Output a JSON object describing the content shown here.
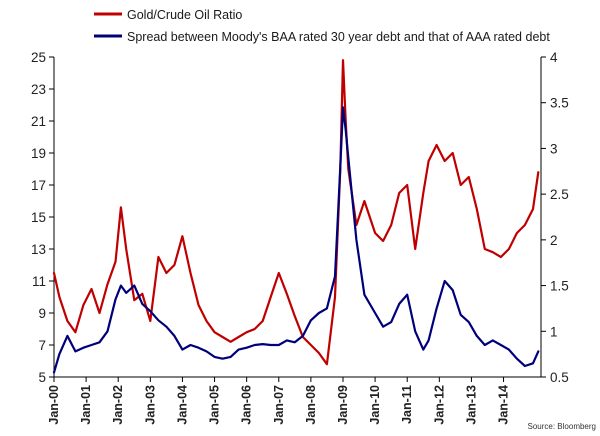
{
  "chart_data": {
    "type": "line",
    "title": "",
    "xlabel": "",
    "source": "Source: Bloomberg",
    "x_tick_labels": [
      "Jan-00",
      "Jan-01",
      "Jan-02",
      "Jan-03",
      "Jan-04",
      "Jan-05",
      "Jan-06",
      "Jan-07",
      "Jan-08",
      "Jan-09",
      "Jan-10",
      "Jan-11",
      "Jan-12",
      "Jan-13",
      "Jan-14"
    ],
    "xlim": [
      "2000-01",
      "2015-03"
    ],
    "y_left": {
      "ticks": [
        5,
        7,
        9,
        11,
        13,
        15,
        17,
        19,
        21,
        23,
        25
      ],
      "ylim": [
        5,
        25
      ],
      "labels": [
        "5",
        "7",
        "9",
        "11",
        "13",
        "15",
        "17",
        "19",
        "21",
        "23",
        "25"
      ]
    },
    "y_right": {
      "ticks": [
        0.5,
        1,
        1.5,
        2,
        2.5,
        3,
        3.5,
        4
      ],
      "ylim": [
        0.5,
        4
      ],
      "labels": [
        "0.5",
        "1",
        "1.5",
        "2",
        "2.5",
        "3",
        "3.5",
        "4"
      ]
    },
    "gridlines": false,
    "legend_position": "top-left",
    "series": [
      {
        "name": "Gold/Crude Oil Ratio",
        "axis": "left",
        "color": "#c00000",
        "x": [
          "2000-01",
          "2000-03",
          "2000-06",
          "2000-09",
          "2000-12",
          "2001-03",
          "2001-06",
          "2001-09",
          "2001-12",
          "2002-02",
          "2002-04",
          "2002-07",
          "2002-10",
          "2003-01",
          "2003-04",
          "2003-07",
          "2003-10",
          "2004-01",
          "2004-04",
          "2004-07",
          "2004-10",
          "2005-01",
          "2005-04",
          "2005-07",
          "2005-10",
          "2006-01",
          "2006-04",
          "2006-07",
          "2006-10",
          "2007-01",
          "2007-04",
          "2007-07",
          "2007-10",
          "2008-01",
          "2008-04",
          "2008-07",
          "2008-10",
          "2008-12",
          "2009-01",
          "2009-02",
          "2009-03",
          "2009-06",
          "2009-09",
          "2010-01",
          "2010-04",
          "2010-07",
          "2010-10",
          "2011-01",
          "2011-04",
          "2011-07",
          "2011-09",
          "2011-12",
          "2012-03",
          "2012-06",
          "2012-09",
          "2012-12",
          "2013-03",
          "2013-06",
          "2013-09",
          "2013-12",
          "2014-03",
          "2014-06",
          "2014-09",
          "2014-12",
          "2015-02"
        ],
        "values": [
          11.5,
          10.0,
          8.5,
          7.8,
          9.5,
          10.5,
          9.0,
          10.8,
          12.2,
          15.6,
          13.0,
          9.8,
          10.2,
          8.5,
          12.5,
          11.5,
          12.0,
          13.8,
          11.5,
          9.5,
          8.5,
          7.8,
          7.5,
          7.2,
          7.5,
          7.8,
          8.0,
          8.5,
          10.0,
          11.5,
          10.2,
          8.8,
          7.5,
          7.0,
          6.5,
          5.8,
          10.0,
          18.0,
          24.8,
          21.0,
          18.0,
          14.5,
          16.0,
          14.0,
          13.5,
          14.5,
          16.5,
          17.0,
          13.0,
          16.5,
          18.5,
          19.5,
          18.5,
          19.0,
          17.0,
          17.5,
          15.5,
          13.0,
          12.8,
          12.5,
          13.0,
          14.0,
          14.5,
          15.5,
          17.8
        ]
      },
      {
        "name": "Spread between Moody's BAA rated 30 year debt and that of AAA rated debt",
        "axis": "right",
        "color": "#00007a",
        "x": [
          "2000-01",
          "2000-03",
          "2000-06",
          "2000-09",
          "2000-12",
          "2001-03",
          "2001-06",
          "2001-09",
          "2001-12",
          "2002-02",
          "2002-04",
          "2002-07",
          "2002-10",
          "2003-01",
          "2003-04",
          "2003-07",
          "2003-10",
          "2004-01",
          "2004-04",
          "2004-07",
          "2004-10",
          "2005-01",
          "2005-04",
          "2005-07",
          "2005-10",
          "2006-01",
          "2006-04",
          "2006-07",
          "2006-10",
          "2007-01",
          "2007-04",
          "2007-07",
          "2007-10",
          "2008-01",
          "2008-04",
          "2008-07",
          "2008-10",
          "2008-12",
          "2009-01",
          "2009-02",
          "2009-03",
          "2009-06",
          "2009-09",
          "2010-01",
          "2010-04",
          "2010-07",
          "2010-10",
          "2011-01",
          "2011-04",
          "2011-07",
          "2011-09",
          "2011-12",
          "2012-03",
          "2012-06",
          "2012-09",
          "2012-12",
          "2013-03",
          "2013-06",
          "2013-09",
          "2013-12",
          "2014-03",
          "2014-06",
          "2014-09",
          "2014-12",
          "2015-02"
        ],
        "values": [
          0.55,
          0.75,
          0.95,
          0.78,
          0.82,
          0.85,
          0.88,
          1.0,
          1.35,
          1.5,
          1.42,
          1.5,
          1.3,
          1.22,
          1.12,
          1.05,
          0.95,
          0.8,
          0.85,
          0.82,
          0.78,
          0.72,
          0.7,
          0.72,
          0.8,
          0.82,
          0.85,
          0.86,
          0.85,
          0.85,
          0.9,
          0.88,
          0.95,
          1.12,
          1.2,
          1.25,
          1.6,
          2.8,
          3.45,
          3.2,
          2.9,
          2.0,
          1.4,
          1.2,
          1.05,
          1.1,
          1.3,
          1.4,
          1.0,
          0.8,
          0.9,
          1.25,
          1.55,
          1.45,
          1.18,
          1.1,
          0.95,
          0.85,
          0.9,
          0.85,
          0.8,
          0.7,
          0.62,
          0.65,
          0.78
        ]
      }
    ]
  }
}
